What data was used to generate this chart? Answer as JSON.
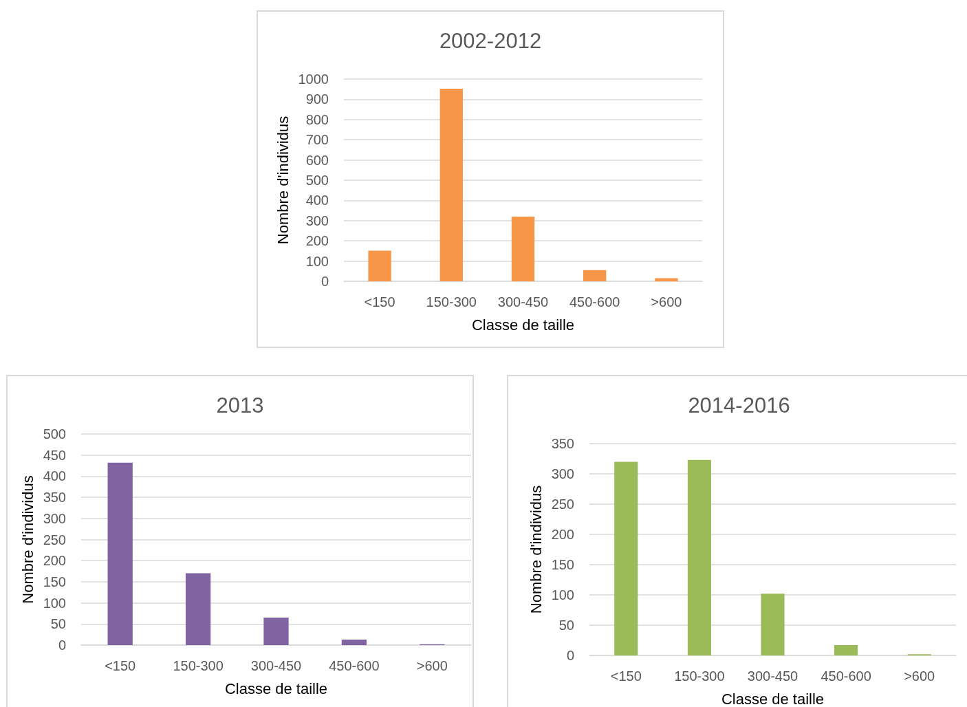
{
  "chart_data": [
    {
      "type": "bar",
      "title": "2002-2012",
      "xlabel": "Classe de taille",
      "ylabel": "Nombre d'individus",
      "categories": [
        "<150",
        "150-300",
        "300-450",
        "450-600",
        ">600"
      ],
      "series": [
        {
          "color": "#f79646",
          "values": [
            151,
            952,
            320,
            55,
            15
          ]
        }
      ],
      "ylim": [
        0,
        1000
      ],
      "yticks": [
        0,
        100,
        200,
        300,
        400,
        500,
        600,
        700,
        800,
        900,
        1000
      ],
      "grid": "y"
    },
    {
      "type": "bar",
      "title": "2013",
      "xlabel": "Classe de taille",
      "ylabel": "Nombre d'individus",
      "categories": [
        "<150",
        "150-300",
        "300-450",
        "450-600",
        ">600"
      ],
      "series": [
        {
          "color": "#8064a2",
          "values": [
            432,
            170,
            65,
            13,
            2
          ]
        }
      ],
      "ylim": [
        0,
        500
      ],
      "yticks": [
        0,
        50,
        100,
        150,
        200,
        250,
        300,
        350,
        400,
        450,
        500
      ],
      "grid": "y"
    },
    {
      "type": "bar",
      "title": "2014-2016",
      "xlabel": "Classe de taille",
      "ylabel": "Nombre d'individus",
      "categories": [
        "<150",
        "150-300",
        "300-450",
        "450-600",
        ">600"
      ],
      "series": [
        {
          "color": "#9bbb59",
          "values": [
            320,
            323,
            102,
            17,
            2
          ]
        }
      ],
      "ylim": [
        0,
        350
      ],
      "yticks": [
        0,
        50,
        100,
        150,
        200,
        250,
        300,
        350
      ],
      "grid": "y"
    }
  ]
}
